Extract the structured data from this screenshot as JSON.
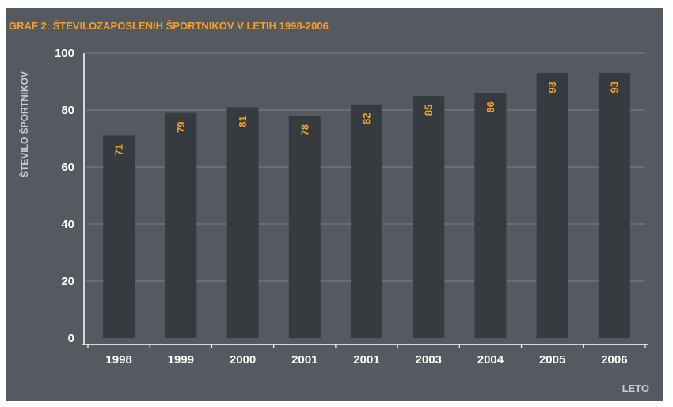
{
  "colors": {
    "background": "#545a60",
    "bar": "#363b3f",
    "accent": "#f4a028",
    "axis_text": "#ffffff",
    "label_text": "#c9ced2"
  },
  "chart_data": {
    "type": "bar",
    "title": "GRAF 2: ŠTEVILOZAPOSLENIH ŠPORTNIKOV V LETIH 1998-2006",
    "ylabel": "ŠTEVILO ŠPORTNIKOV",
    "xlabel": "LETO",
    "categories": [
      "1998",
      "1999",
      "2000",
      "2001",
      "2001",
      "2003",
      "2004",
      "2005",
      "2006"
    ],
    "values": [
      71,
      79,
      81,
      78,
      82,
      85,
      86,
      93,
      93
    ],
    "value_labels": [
      "71",
      "79",
      "81",
      "78",
      "82",
      "85",
      "86",
      "93",
      "93"
    ],
    "ylim": [
      0,
      100
    ],
    "yticks": [
      "0",
      "20",
      "40",
      "60",
      "80",
      "100"
    ],
    "grid": true,
    "legend": "none"
  }
}
